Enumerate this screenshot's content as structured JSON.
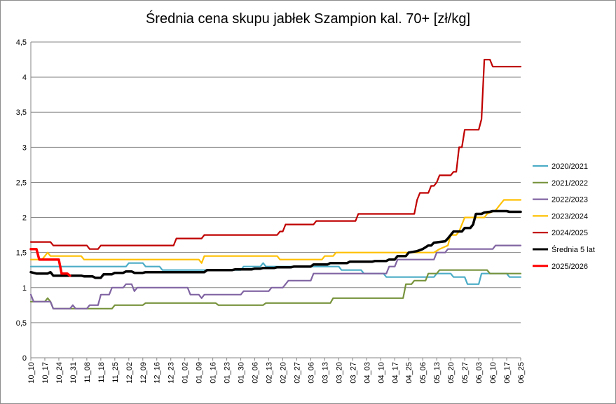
{
  "chart_data": {
    "type": "line",
    "title": "Średnia cena skupu jabłek Szampion kal. 70+ [zł/kg]",
    "xlabel": "",
    "ylabel": "",
    "ylim": [
      0,
      4.5
    ],
    "y_ticks": [
      "0",
      "0,5",
      "1",
      "1,5",
      "2",
      "2,5",
      "3",
      "3,5",
      "4",
      "4,5"
    ],
    "grid": "horizontal",
    "legend_position": "right",
    "x_tick_labels": [
      "10_10",
      "10_17",
      "10_24",
      "10_31",
      "11_08",
      "11_18",
      "11_25",
      "12_02",
      "12_09",
      "12_16",
      "12_23",
      "01_02",
      "01_09",
      "01_16",
      "01_23",
      "01_30",
      "02_06",
      "02_13",
      "02_20",
      "02_27",
      "03_06",
      "03_13",
      "03_20",
      "03_27",
      "04_03",
      "04_10",
      "04_17",
      "04_25",
      "05_06",
      "05_13",
      "05_20",
      "05_27",
      "06_03",
      "06_10",
      "06_17",
      "06_25"
    ],
    "x_range": [
      0,
      35
    ],
    "series": [
      {
        "name": "2020/2021",
        "color": "#4bacc6",
        "points": [
          [
            0,
            1.3
          ],
          [
            6.8,
            1.3
          ],
          [
            7.0,
            1.35
          ],
          [
            8.0,
            1.35
          ],
          [
            8.2,
            1.3
          ],
          [
            9.2,
            1.3
          ],
          [
            9.4,
            1.25
          ],
          [
            15.0,
            1.25
          ],
          [
            15.2,
            1.3
          ],
          [
            16.4,
            1.3
          ],
          [
            16.6,
            1.35
          ],
          [
            16.8,
            1.3
          ],
          [
            22.0,
            1.3
          ],
          [
            22.2,
            1.25
          ],
          [
            23.6,
            1.25
          ],
          [
            23.8,
            1.2
          ],
          [
            25.2,
            1.2
          ],
          [
            25.4,
            1.15
          ],
          [
            28.8,
            1.15
          ],
          [
            29.0,
            1.2
          ],
          [
            30.0,
            1.2
          ],
          [
            30.2,
            1.15
          ],
          [
            31.0,
            1.15
          ],
          [
            31.2,
            1.05
          ],
          [
            32.0,
            1.05
          ],
          [
            32.2,
            1.2
          ],
          [
            34.0,
            1.2
          ],
          [
            34.2,
            1.15
          ],
          [
            35,
            1.15
          ]
        ]
      },
      {
        "name": "2021/2022",
        "color": "#77933c",
        "points": [
          [
            0,
            0.8
          ],
          [
            1.0,
            0.8
          ],
          [
            1.2,
            0.85
          ],
          [
            1.4,
            0.8
          ],
          [
            1.6,
            0.7
          ],
          [
            5.8,
            0.7
          ],
          [
            6.0,
            0.75
          ],
          [
            8.0,
            0.75
          ],
          [
            8.2,
            0.78
          ],
          [
            13.2,
            0.78
          ],
          [
            13.4,
            0.75
          ],
          [
            16.6,
            0.75
          ],
          [
            16.8,
            0.78
          ],
          [
            21.4,
            0.78
          ],
          [
            21.6,
            0.85
          ],
          [
            26.6,
            0.85
          ],
          [
            26.8,
            1.05
          ],
          [
            27.2,
            1.05
          ],
          [
            27.4,
            1.1
          ],
          [
            28.2,
            1.1
          ],
          [
            28.4,
            1.2
          ],
          [
            29.0,
            1.2
          ],
          [
            29.2,
            1.25
          ],
          [
            32.6,
            1.25
          ],
          [
            32.8,
            1.2
          ],
          [
            35,
            1.2
          ]
        ]
      },
      {
        "name": "2022/2023",
        "color": "#8064a2",
        "points": [
          [
            0,
            0.9
          ],
          [
            0.2,
            0.8
          ],
          [
            1.4,
            0.8
          ],
          [
            1.6,
            0.7
          ],
          [
            2.8,
            0.7
          ],
          [
            3.0,
            0.75
          ],
          [
            3.2,
            0.7
          ],
          [
            4.0,
            0.7
          ],
          [
            4.2,
            0.75
          ],
          [
            4.8,
            0.75
          ],
          [
            5.0,
            0.9
          ],
          [
            5.6,
            0.9
          ],
          [
            5.8,
            1.0
          ],
          [
            6.6,
            1.0
          ],
          [
            6.8,
            1.05
          ],
          [
            7.2,
            1.05
          ],
          [
            7.4,
            0.95
          ],
          [
            7.6,
            1.0
          ],
          [
            11.2,
            1.0
          ],
          [
            11.4,
            0.9
          ],
          [
            12.0,
            0.9
          ],
          [
            12.2,
            0.85
          ],
          [
            12.4,
            0.9
          ],
          [
            15.0,
            0.9
          ],
          [
            15.2,
            0.95
          ],
          [
            17.0,
            0.95
          ],
          [
            17.2,
            1.0
          ],
          [
            18.0,
            1.0
          ],
          [
            18.2,
            1.05
          ],
          [
            18.4,
            1.1
          ],
          [
            20.0,
            1.1
          ],
          [
            20.2,
            1.2
          ],
          [
            25.4,
            1.2
          ],
          [
            25.6,
            1.3
          ],
          [
            26.0,
            1.3
          ],
          [
            26.2,
            1.4
          ],
          [
            28.8,
            1.4
          ],
          [
            29.0,
            1.5
          ],
          [
            29.6,
            1.5
          ],
          [
            29.8,
            1.55
          ],
          [
            33.0,
            1.55
          ],
          [
            33.2,
            1.6
          ],
          [
            35,
            1.6
          ]
        ]
      },
      {
        "name": "2023/2024",
        "color": "#ffc000",
        "points": [
          [
            0,
            1.4
          ],
          [
            0.8,
            1.4
          ],
          [
            1.0,
            1.45
          ],
          [
            1.2,
            1.5
          ],
          [
            1.4,
            1.45
          ],
          [
            3.6,
            1.45
          ],
          [
            3.8,
            1.4
          ],
          [
            12.0,
            1.4
          ],
          [
            12.2,
            1.35
          ],
          [
            12.4,
            1.45
          ],
          [
            17.6,
            1.45
          ],
          [
            17.8,
            1.4
          ],
          [
            20.8,
            1.4
          ],
          [
            21.0,
            1.45
          ],
          [
            21.6,
            1.45
          ],
          [
            21.8,
            1.5
          ],
          [
            28.8,
            1.5
          ],
          [
            29.2,
            1.55
          ],
          [
            29.8,
            1.6
          ],
          [
            30.0,
            1.75
          ],
          [
            30.4,
            1.75
          ],
          [
            30.6,
            1.8
          ],
          [
            31.0,
            2.0
          ],
          [
            32.4,
            2.0
          ],
          [
            32.6,
            2.05
          ],
          [
            33.2,
            2.1
          ],
          [
            33.6,
            2.2
          ],
          [
            33.8,
            2.25
          ],
          [
            35,
            2.25
          ]
        ]
      },
      {
        "name": "2024/2025",
        "color": "#c00000",
        "points": [
          [
            0,
            1.65
          ],
          [
            1.4,
            1.65
          ],
          [
            1.6,
            1.6
          ],
          [
            4.0,
            1.6
          ],
          [
            4.2,
            1.55
          ],
          [
            4.8,
            1.55
          ],
          [
            5.0,
            1.6
          ],
          [
            10.2,
            1.6
          ],
          [
            10.4,
            1.7
          ],
          [
            12.2,
            1.7
          ],
          [
            12.4,
            1.75
          ],
          [
            17.6,
            1.75
          ],
          [
            17.8,
            1.8
          ],
          [
            18.0,
            1.8
          ],
          [
            18.2,
            1.9
          ],
          [
            20.2,
            1.9
          ],
          [
            20.4,
            1.95
          ],
          [
            23.2,
            1.95
          ],
          [
            23.4,
            2.05
          ],
          [
            27.4,
            2.05
          ],
          [
            27.6,
            2.25
          ],
          [
            27.8,
            2.35
          ],
          [
            28.4,
            2.35
          ],
          [
            28.6,
            2.45
          ],
          [
            28.8,
            2.45
          ],
          [
            29.0,
            2.5
          ],
          [
            29.2,
            2.6
          ],
          [
            30.0,
            2.6
          ],
          [
            30.2,
            2.65
          ],
          [
            30.4,
            2.65
          ],
          [
            30.6,
            3.0
          ],
          [
            30.8,
            3.0
          ],
          [
            31.0,
            3.25
          ],
          [
            32.0,
            3.25
          ],
          [
            32.2,
            3.4
          ],
          [
            32.4,
            4.25
          ],
          [
            32.8,
            4.25
          ],
          [
            33.0,
            4.15
          ],
          [
            35,
            4.15
          ]
        ]
      },
      {
        "name": "Średnia 5 lat",
        "color": "#000000",
        "width": 3.5,
        "points": [
          [
            0,
            1.22
          ],
          [
            0.4,
            1.2
          ],
          [
            1.2,
            1.2
          ],
          [
            1.4,
            1.22
          ],
          [
            1.6,
            1.17
          ],
          [
            3.6,
            1.17
          ],
          [
            3.8,
            1.16
          ],
          [
            4.4,
            1.16
          ],
          [
            4.6,
            1.14
          ],
          [
            5.0,
            1.14
          ],
          [
            5.2,
            1.19
          ],
          [
            5.8,
            1.19
          ],
          [
            6.0,
            1.21
          ],
          [
            6.6,
            1.21
          ],
          [
            6.8,
            1.23
          ],
          [
            7.2,
            1.23
          ],
          [
            7.4,
            1.21
          ],
          [
            8.0,
            1.21
          ],
          [
            8.2,
            1.22
          ],
          [
            12.4,
            1.22
          ],
          [
            12.6,
            1.25
          ],
          [
            14.4,
            1.25
          ],
          [
            14.6,
            1.26
          ],
          [
            15.8,
            1.26
          ],
          [
            16.0,
            1.27
          ],
          [
            16.4,
            1.27
          ],
          [
            16.6,
            1.28
          ],
          [
            17.4,
            1.28
          ],
          [
            17.6,
            1.29
          ],
          [
            18.6,
            1.29
          ],
          [
            18.8,
            1.3
          ],
          [
            20.0,
            1.3
          ],
          [
            20.2,
            1.33
          ],
          [
            21.2,
            1.33
          ],
          [
            21.4,
            1.35
          ],
          [
            22.6,
            1.35
          ],
          [
            22.8,
            1.37
          ],
          [
            24.4,
            1.37
          ],
          [
            24.6,
            1.38
          ],
          [
            25.4,
            1.38
          ],
          [
            25.6,
            1.4
          ],
          [
            26.0,
            1.4
          ],
          [
            26.2,
            1.45
          ],
          [
            26.8,
            1.45
          ],
          [
            27.0,
            1.5
          ],
          [
            27.6,
            1.52
          ],
          [
            28.0,
            1.55
          ],
          [
            28.4,
            1.6
          ],
          [
            28.6,
            1.6
          ],
          [
            28.8,
            1.64
          ],
          [
            29.2,
            1.65
          ],
          [
            29.6,
            1.66
          ],
          [
            29.8,
            1.7
          ],
          [
            30.2,
            1.8
          ],
          [
            30.8,
            1.8
          ],
          [
            31.0,
            1.85
          ],
          [
            31.4,
            1.85
          ],
          [
            31.6,
            1.9
          ],
          [
            31.8,
            2.05
          ],
          [
            32.2,
            2.05
          ],
          [
            32.4,
            2.07
          ],
          [
            32.8,
            2.08
          ],
          [
            33.0,
            2.09
          ],
          [
            34.0,
            2.09
          ],
          [
            34.2,
            2.08
          ],
          [
            35,
            2.08
          ]
        ]
      },
      {
        "name": "2025/2026",
        "color": "#ff0000",
        "width": 3.5,
        "points": [
          [
            0,
            1.55
          ],
          [
            0.4,
            1.55
          ],
          [
            0.6,
            1.4
          ],
          [
            2.0,
            1.4
          ],
          [
            2.2,
            1.2
          ],
          [
            2.6,
            1.2
          ],
          [
            2.8,
            1.17
          ]
        ]
      }
    ]
  }
}
